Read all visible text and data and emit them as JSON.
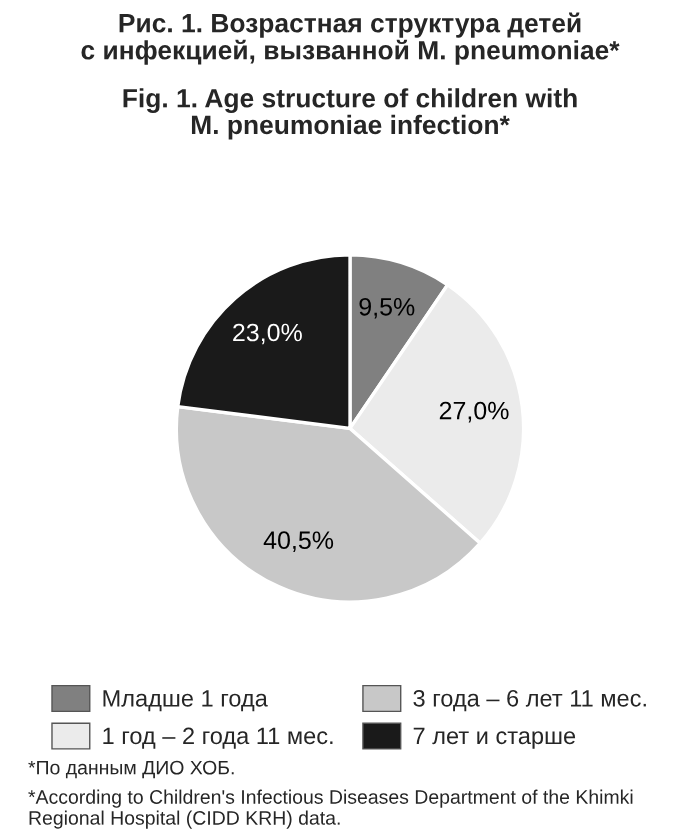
{
  "chart_data": {
    "type": "pie",
    "title": "Рис. 1. Возрастная структура детей\nс инфекцией, вызванной M. pneumoniae*",
    "subtitle": "Fig. 1. Age structure of children with\nM. pneumoniae infection*",
    "categories": [
      "Младше 1 года",
      "1 год – 2 года 11 мес.",
      "3 года – 6 лет 11 мес.",
      "7 лет и старше"
    ],
    "values": [
      9.5,
      27.0,
      40.5,
      23.0
    ],
    "value_labels": [
      "9,5%",
      "27,0%",
      "40,5%",
      "23,0%"
    ],
    "colors": [
      "#808080",
      "#ebebeb",
      "#c8c8c8",
      "#1a1a1a"
    ],
    "legend": "bottom",
    "annotations": [
      "*По данным ДИО ХОБ.",
      "*According to Children's Infectious Diseases Department of the Khimki Regional Hospital (CIDD KRH) data."
    ]
  }
}
